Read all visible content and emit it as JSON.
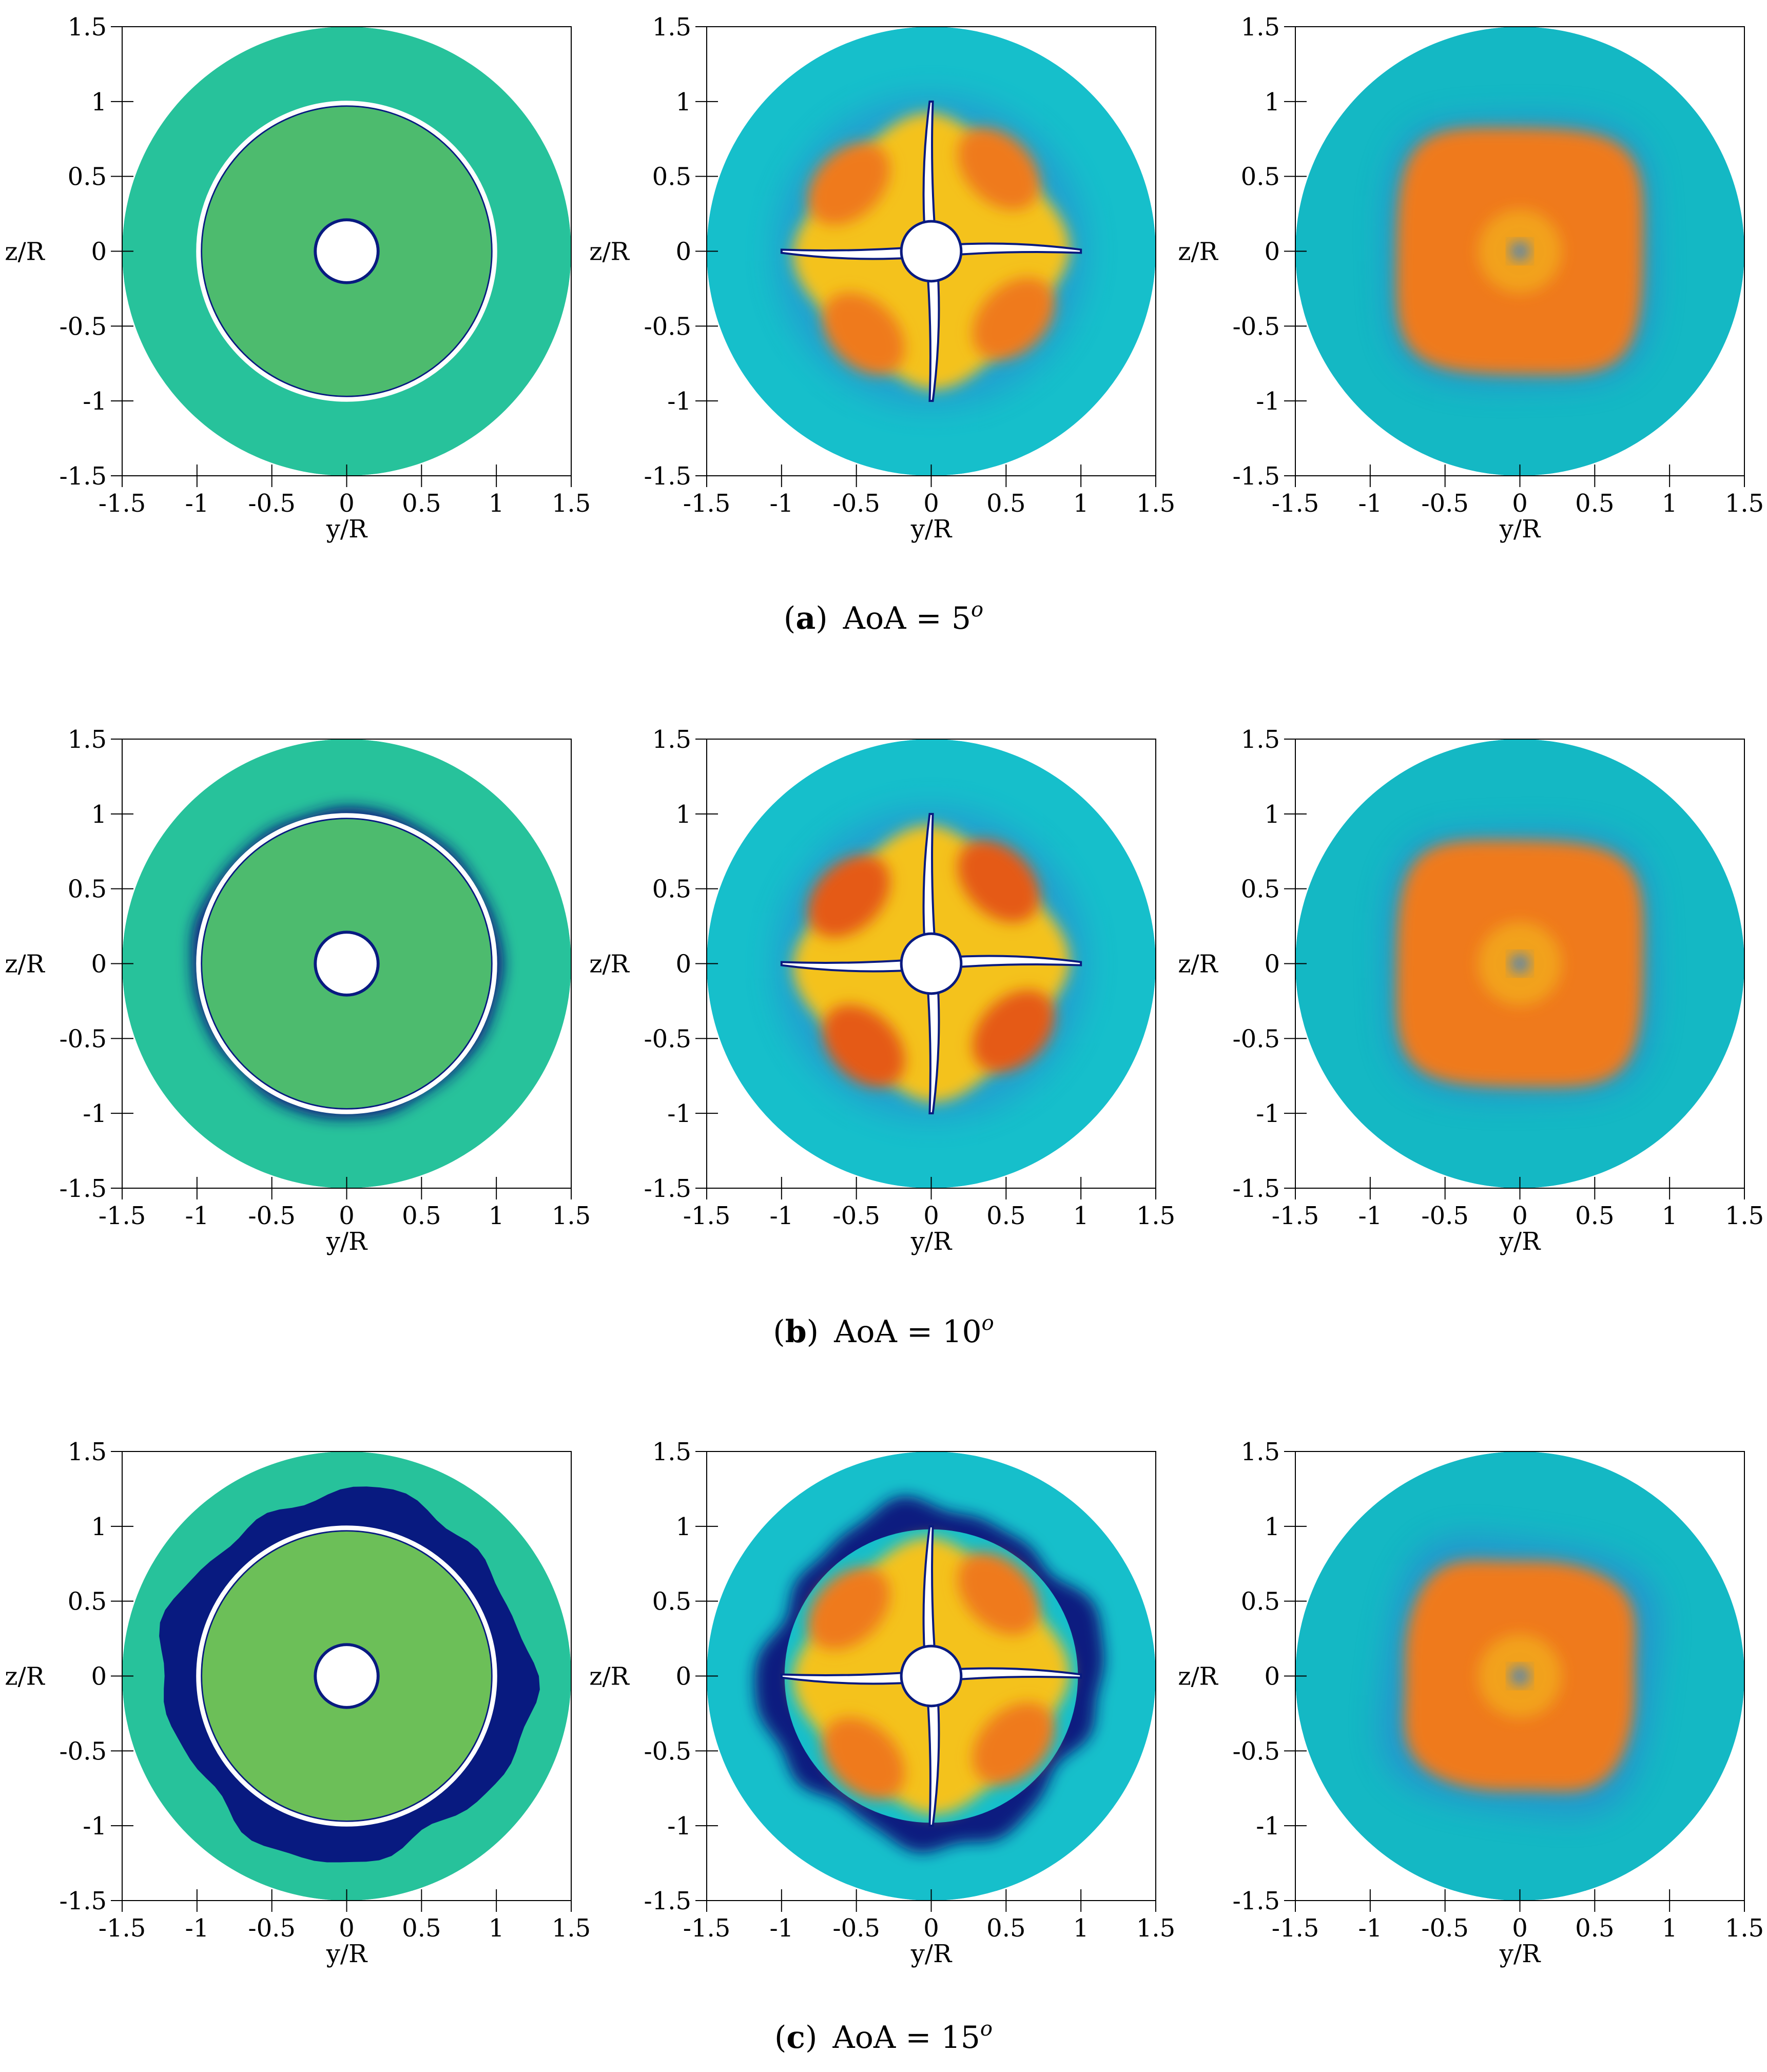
{
  "figure": {
    "captions": [
      {
        "letter": "a",
        "text": "AoA = 5",
        "sup": "o"
      },
      {
        "letter": "b",
        "text": "AoA = 10",
        "sup": "o"
      },
      {
        "letter": "c",
        "text": "AoA = 15",
        "sup": "o"
      }
    ]
  },
  "colors": {
    "background": "#ffffff",
    "panel1_field": "#27c29b",
    "panel1_inner": "#4dbb6e",
    "panel1_inner_c": "#6cbf58",
    "panel2_field": "#16bfcb",
    "panel3_field": "#14b8c4",
    "dark_blue": "#081a80",
    "blue": "#2e7fd6",
    "yellow": "#f4c21d",
    "orange": "#ef7a1c",
    "red_orange": "#e55a16",
    "dark_red": "#c1280f",
    "hub": "#ffffff"
  },
  "chart_data": [
    {
      "type": "heatmap",
      "panel": "a-1",
      "xlabel": "y/R",
      "ylabel": "z/R",
      "xlim": [
        -1.5,
        1.5
      ],
      "ylim": [
        -1.5,
        1.5
      ],
      "x_ticks": [
        "-1.5",
        "-1",
        "-0.5",
        "0",
        "0.5",
        "1",
        "1.5"
      ],
      "y_ticks": [
        "1.5",
        "1",
        "0.5",
        "0",
        "-0.5",
        "-1",
        "-1.5"
      ]
    },
    {
      "type": "heatmap",
      "panel": "a-2",
      "xlabel": "y/R",
      "ylabel": "z/R",
      "xlim": [
        -1.5,
        1.5
      ],
      "ylim": [
        -1.5,
        1.5
      ],
      "x_ticks": [
        "-1.5",
        "-1",
        "-0.5",
        "0",
        "0.5",
        "1",
        "1.5"
      ],
      "y_ticks": [
        "1.5",
        "1",
        "0.5",
        "0",
        "-0.5",
        "-1",
        "-1.5"
      ]
    },
    {
      "type": "heatmap",
      "panel": "a-3",
      "xlabel": "y/R",
      "ylabel": "z/R",
      "xlim": [
        -1.5,
        1.5
      ],
      "ylim": [
        -1.5,
        1.5
      ],
      "x_ticks": [
        "-1.5",
        "-1",
        "-0.5",
        "0",
        "0.5",
        "1",
        "1.5"
      ],
      "y_ticks": [
        "1.5",
        "1",
        "0.5",
        "0",
        "-0.5",
        "-1",
        "-1.5"
      ]
    },
    {
      "type": "heatmap",
      "panel": "b-1",
      "xlabel": "y/R",
      "ylabel": "z/R",
      "xlim": [
        -1.5,
        1.5
      ],
      "ylim": [
        -1.5,
        1.5
      ],
      "x_ticks": [
        "-1.5",
        "-1",
        "-0.5",
        "0",
        "0.5",
        "1",
        "1.5"
      ],
      "y_ticks": [
        "1.5",
        "1",
        "0.5",
        "0",
        "-0.5",
        "-1",
        "-1.5"
      ]
    },
    {
      "type": "heatmap",
      "panel": "b-2",
      "xlabel": "y/R",
      "ylabel": "z/R",
      "xlim": [
        -1.5,
        1.5
      ],
      "ylim": [
        -1.5,
        1.5
      ],
      "x_ticks": [
        "-1.5",
        "-1",
        "-0.5",
        "0",
        "0.5",
        "1",
        "1.5"
      ],
      "y_ticks": [
        "1.5",
        "1",
        "0.5",
        "0",
        "-0.5",
        "-1",
        "-1.5"
      ]
    },
    {
      "type": "heatmap",
      "panel": "b-3",
      "xlabel": "y/R",
      "ylabel": "z/R",
      "xlim": [
        -1.5,
        1.5
      ],
      "ylim": [
        -1.5,
        1.5
      ],
      "x_ticks": [
        "-1.5",
        "-1",
        "-0.5",
        "0",
        "0.5",
        "1",
        "1.5"
      ],
      "y_ticks": [
        "1.5",
        "1",
        "0.5",
        "0",
        "-0.5",
        "-1",
        "-1.5"
      ]
    },
    {
      "type": "heatmap",
      "panel": "c-1",
      "xlabel": "y/R",
      "ylabel": "z/R",
      "xlim": [
        -1.5,
        1.5
      ],
      "ylim": [
        -1.5,
        1.5
      ],
      "x_ticks": [
        "-1.5",
        "-1",
        "-0.5",
        "0",
        "0.5",
        "1",
        "1.5"
      ],
      "y_ticks": [
        "1.5",
        "1",
        "0.5",
        "0",
        "-0.5",
        "-1",
        "-1.5"
      ]
    },
    {
      "type": "heatmap",
      "panel": "c-2",
      "xlabel": "y/R",
      "ylabel": "z/R",
      "xlim": [
        -1.5,
        1.5
      ],
      "ylim": [
        -1.5,
        1.5
      ],
      "x_ticks": [
        "-1.5",
        "-1",
        "-0.5",
        "0",
        "0.5",
        "1",
        "1.5"
      ],
      "y_ticks": [
        "1.5",
        "1",
        "0.5",
        "0",
        "-0.5",
        "-1",
        "-1.5"
      ]
    },
    {
      "type": "heatmap",
      "panel": "c-3",
      "xlabel": "y/R",
      "ylabel": "z/R",
      "xlim": [
        -1.5,
        1.5
      ],
      "ylim": [
        -1.5,
        1.5
      ],
      "x_ticks": [
        "-1.5",
        "-1",
        "-0.5",
        "0",
        "0.5",
        "1",
        "1.5"
      ],
      "y_ticks": [
        "1.5",
        "1",
        "0.5",
        "0",
        "-0.5",
        "-1",
        "-1.5"
      ]
    }
  ]
}
